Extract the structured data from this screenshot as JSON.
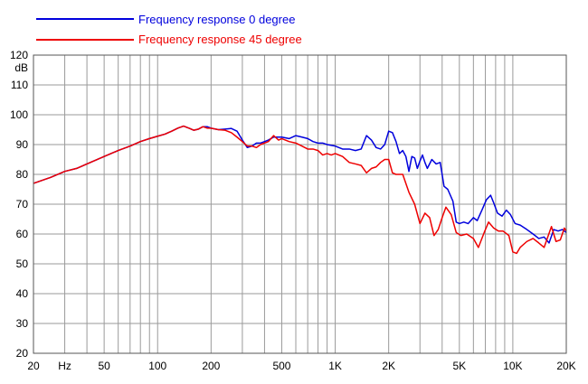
{
  "chart_data": {
    "type": "line",
    "x_scale": "log",
    "xlim": [
      20,
      20000
    ],
    "ylim": [
      20,
      120
    ],
    "ylabel": "dB",
    "xlabel": "Hz",
    "grid": true,
    "legend_position": "top-left",
    "y_ticks": [
      20,
      30,
      40,
      50,
      60,
      70,
      80,
      90,
      100,
      110,
      120
    ],
    "x_tick_labels": [
      {
        "x": 20,
        "label": "20"
      },
      {
        "x": 30,
        "label": "Hz"
      },
      {
        "x": 50,
        "label": "50"
      },
      {
        "x": 100,
        "label": "100"
      },
      {
        "x": 200,
        "label": "200"
      },
      {
        "x": 500,
        "label": "500"
      },
      {
        "x": 1000,
        "label": "1K"
      },
      {
        "x": 2000,
        "label": "2K"
      },
      {
        "x": 5000,
        "label": "5K"
      },
      {
        "x": 10000,
        "label": "10K"
      },
      {
        "x": 20000,
        "label": "20K"
      }
    ],
    "series": [
      {
        "name": "Frequency response 0 degree",
        "color": "#0000dd",
        "points": [
          [
            20,
            77
          ],
          [
            25,
            79
          ],
          [
            30,
            81
          ],
          [
            35,
            82
          ],
          [
            40,
            83.5
          ],
          [
            50,
            86
          ],
          [
            60,
            88
          ],
          [
            70,
            89.5
          ],
          [
            80,
            91
          ],
          [
            90,
            92
          ],
          [
            100,
            92.8
          ],
          [
            110,
            93.5
          ],
          [
            120,
            94.5
          ],
          [
            130,
            95.5
          ],
          [
            140,
            96.2
          ],
          [
            150,
            95.5
          ],
          [
            160,
            94.8
          ],
          [
            170,
            95.2
          ],
          [
            180,
            96
          ],
          [
            190,
            96
          ],
          [
            200,
            95.5
          ],
          [
            220,
            95
          ],
          [
            240,
            95.2
          ],
          [
            260,
            95.4
          ],
          [
            280,
            94.5
          ],
          [
            300,
            91.5
          ],
          [
            320,
            89
          ],
          [
            340,
            89.5
          ],
          [
            360,
            90.5
          ],
          [
            380,
            90.5
          ],
          [
            400,
            91
          ],
          [
            420,
            91.5
          ],
          [
            450,
            92.5
          ],
          [
            480,
            92.5
          ],
          [
            500,
            92.5
          ],
          [
            550,
            92
          ],
          [
            600,
            93
          ],
          [
            650,
            92.5
          ],
          [
            700,
            92
          ],
          [
            750,
            91
          ],
          [
            800,
            90.5
          ],
          [
            850,
            90.5
          ],
          [
            900,
            90
          ],
          [
            1000,
            89.5
          ],
          [
            1100,
            88.5
          ],
          [
            1200,
            88.5
          ],
          [
            1300,
            88
          ],
          [
            1400,
            88.5
          ],
          [
            1500,
            93
          ],
          [
            1600,
            91.5
          ],
          [
            1700,
            89
          ],
          [
            1800,
            88.5
          ],
          [
            1900,
            90
          ],
          [
            2000,
            94.5
          ],
          [
            2100,
            94
          ],
          [
            2200,
            91
          ],
          [
            2300,
            87
          ],
          [
            2400,
            88
          ],
          [
            2500,
            86
          ],
          [
            2600,
            81
          ],
          [
            2700,
            86
          ],
          [
            2800,
            85.5
          ],
          [
            2900,
            82
          ],
          [
            3000,
            84.5
          ],
          [
            3100,
            86.5
          ],
          [
            3200,
            84
          ],
          [
            3300,
            82
          ],
          [
            3500,
            85
          ],
          [
            3700,
            83.5
          ],
          [
            3900,
            84
          ],
          [
            4100,
            76
          ],
          [
            4300,
            75
          ],
          [
            4600,
            71
          ],
          [
            4800,
            64
          ],
          [
            5000,
            63.5
          ],
          [
            5300,
            64
          ],
          [
            5600,
            63.5
          ],
          [
            6000,
            65.5
          ],
          [
            6300,
            64.5
          ],
          [
            6700,
            68
          ],
          [
            7100,
            71.5
          ],
          [
            7500,
            73
          ],
          [
            7800,
            70.5
          ],
          [
            8200,
            67
          ],
          [
            8700,
            66
          ],
          [
            9200,
            68
          ],
          [
            9700,
            66.5
          ],
          [
            10300,
            63.5
          ],
          [
            11000,
            63
          ],
          [
            12000,
            61.5
          ],
          [
            13000,
            60
          ],
          [
            14000,
            58.5
          ],
          [
            15000,
            59
          ],
          [
            16000,
            57
          ],
          [
            17000,
            61.5
          ],
          [
            18000,
            61
          ],
          [
            19000,
            61.5
          ],
          [
            20000,
            60.5
          ]
        ]
      },
      {
        "name": "Frequency response 45 degree",
        "color": "#ee0000",
        "points": [
          [
            20,
            77
          ],
          [
            25,
            79
          ],
          [
            30,
            81
          ],
          [
            35,
            82
          ],
          [
            40,
            83.5
          ],
          [
            50,
            86
          ],
          [
            60,
            88
          ],
          [
            70,
            89.5
          ],
          [
            80,
            91
          ],
          [
            90,
            92
          ],
          [
            100,
            92.8
          ],
          [
            110,
            93.5
          ],
          [
            120,
            94.5
          ],
          [
            130,
            95.5
          ],
          [
            140,
            96.2
          ],
          [
            150,
            95.5
          ],
          [
            160,
            94.8
          ],
          [
            170,
            95.2
          ],
          [
            180,
            96
          ],
          [
            190,
            95.5
          ],
          [
            200,
            95.5
          ],
          [
            220,
            95
          ],
          [
            240,
            94.8
          ],
          [
            260,
            94
          ],
          [
            280,
            92.5
          ],
          [
            300,
            91
          ],
          [
            320,
            89.5
          ],
          [
            340,
            89.5
          ],
          [
            360,
            89
          ],
          [
            380,
            90
          ],
          [
            400,
            90.5
          ],
          [
            420,
            91
          ],
          [
            450,
            93
          ],
          [
            480,
            91.5
          ],
          [
            500,
            92
          ],
          [
            550,
            91
          ],
          [
            600,
            90.5
          ],
          [
            650,
            89.5
          ],
          [
            700,
            88.5
          ],
          [
            750,
            88.5
          ],
          [
            800,
            88
          ],
          [
            850,
            86.5
          ],
          [
            900,
            87
          ],
          [
            950,
            86.5
          ],
          [
            1000,
            87
          ],
          [
            1100,
            86
          ],
          [
            1200,
            84
          ],
          [
            1300,
            83.5
          ],
          [
            1400,
            83
          ],
          [
            1500,
            80.5
          ],
          [
            1600,
            82
          ],
          [
            1700,
            82.5
          ],
          [
            1800,
            84
          ],
          [
            1900,
            85
          ],
          [
            2000,
            85
          ],
          [
            2100,
            80.5
          ],
          [
            2200,
            80
          ],
          [
            2400,
            80
          ],
          [
            2600,
            74
          ],
          [
            2800,
            70
          ],
          [
            3000,
            63.5
          ],
          [
            3200,
            67
          ],
          [
            3400,
            65.5
          ],
          [
            3600,
            59.5
          ],
          [
            3800,
            61.5
          ],
          [
            4000,
            65.5
          ],
          [
            4200,
            69
          ],
          [
            4500,
            66.5
          ],
          [
            4800,
            60.5
          ],
          [
            5100,
            59.5
          ],
          [
            5500,
            60
          ],
          [
            6000,
            58.5
          ],
          [
            6400,
            55.5
          ],
          [
            6900,
            60.5
          ],
          [
            7300,
            64
          ],
          [
            7800,
            62
          ],
          [
            8300,
            61
          ],
          [
            8800,
            61
          ],
          [
            9500,
            59.5
          ],
          [
            10000,
            54
          ],
          [
            10500,
            53.5
          ],
          [
            11000,
            55.5
          ],
          [
            12000,
            57.5
          ],
          [
            13000,
            58.5
          ],
          [
            14000,
            57
          ],
          [
            15000,
            55.5
          ],
          [
            16500,
            62.5
          ],
          [
            17500,
            57.5
          ],
          [
            18500,
            58
          ],
          [
            19500,
            62
          ],
          [
            20000,
            61
          ]
        ]
      }
    ]
  }
}
